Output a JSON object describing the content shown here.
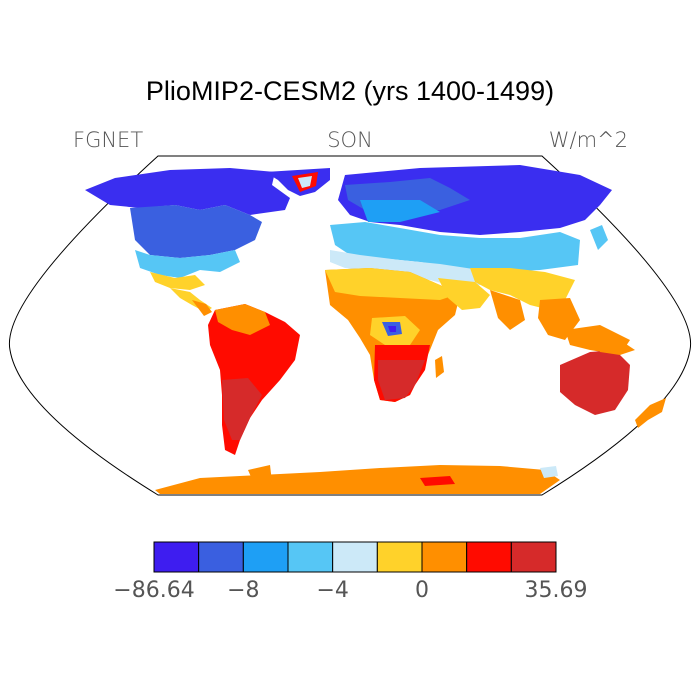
{
  "title": "PlioMIP2-CESM2 (yrs 1400-1499)",
  "left_label": "FGNET",
  "center_label": "SON",
  "right_label": "W/m^2",
  "colorbar": {
    "colors": [
      "#3e1df0",
      "#3a5fe0",
      "#1e9ff5",
      "#56c6f5",
      "#cce9f8",
      "#ffd22a",
      "#ff8f00",
      "#ff0b00",
      "#d62a2a"
    ],
    "labels": [
      "−86.64",
      "−8",
      "−4",
      "0",
      "35.69"
    ]
  }
}
